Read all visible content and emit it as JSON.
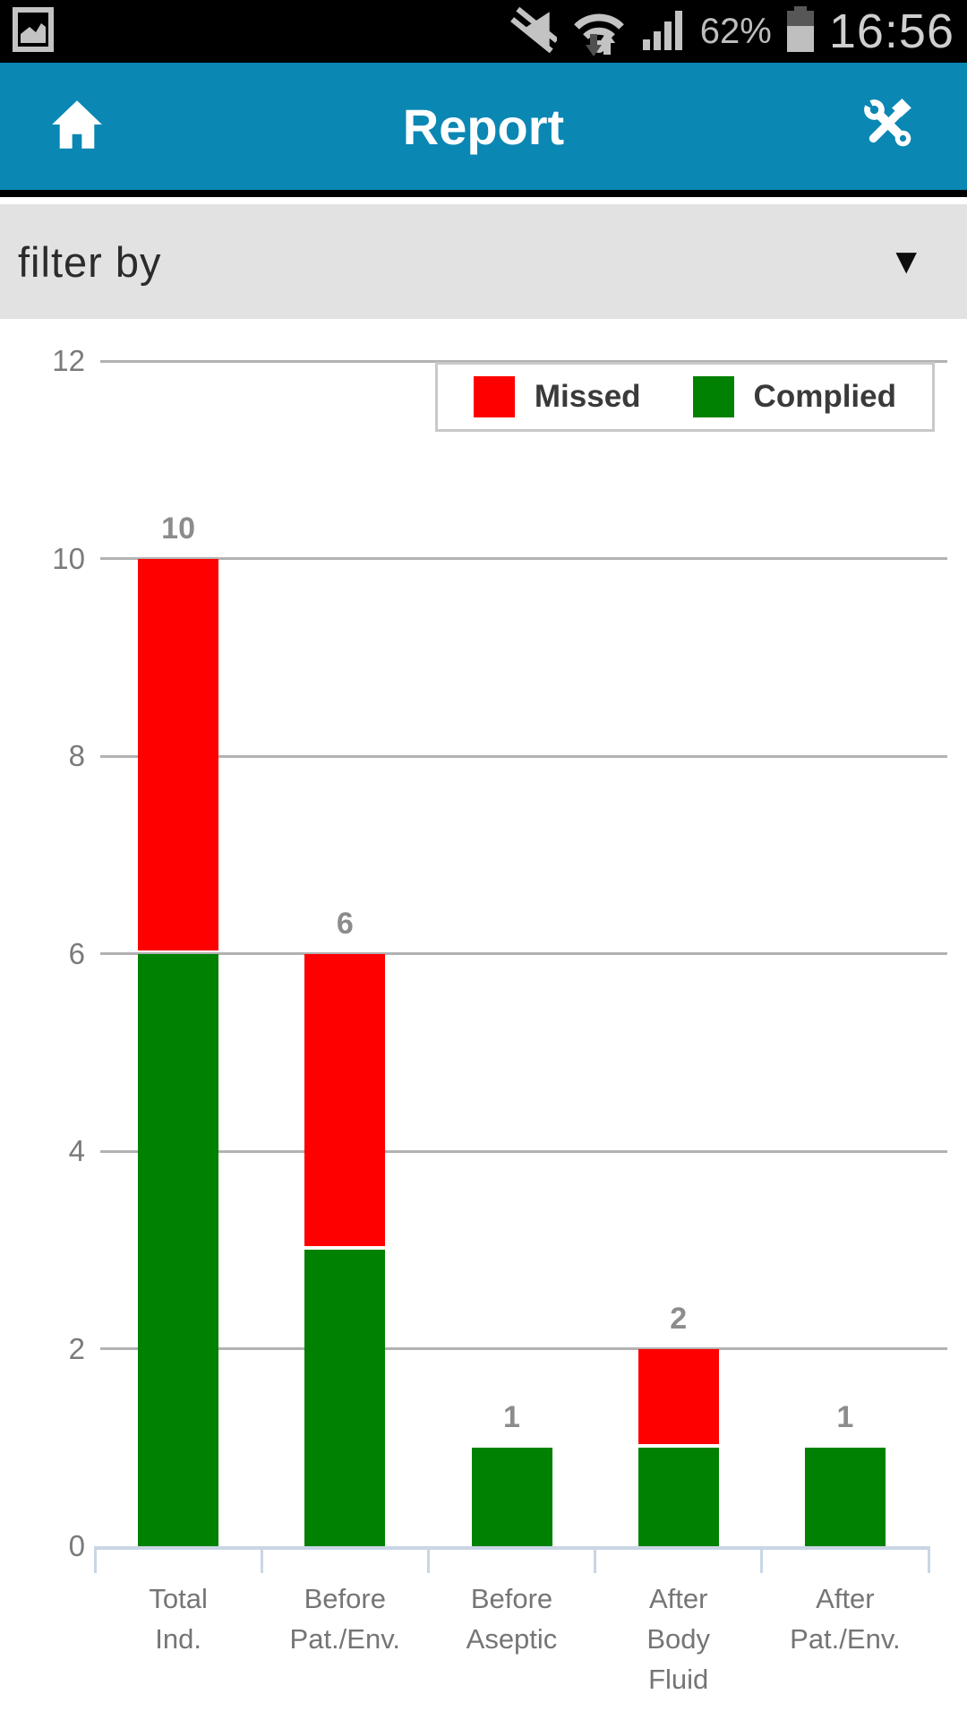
{
  "status_bar": {
    "battery_percent": "62%",
    "time": "16:56",
    "icons": [
      "image-notification-icon",
      "mute-icon",
      "wifi-updown-icon",
      "signal-icon",
      "battery-icon"
    ]
  },
  "app_bar": {
    "title": "Report",
    "left_icon": "home-icon",
    "right_icon": "tools-icon"
  },
  "filter_bar": {
    "label": "filter by",
    "caret": "▼"
  },
  "chart_data": {
    "type": "bar",
    "stacked": true,
    "title": "",
    "xlabel": "",
    "ylabel": "",
    "categories": [
      "Total\nInd.",
      "Before\nPat./Env.",
      "Before\nAseptic",
      "After\nBody\nFluid",
      "After\nPat./Env."
    ],
    "series": [
      {
        "name": "Complied",
        "color": "#018101",
        "values": [
          6,
          3,
          1,
          1,
          1
        ]
      },
      {
        "name": "Missed",
        "color": "#fe0000",
        "values": [
          4,
          3,
          0,
          1,
          0
        ]
      }
    ],
    "totals": [
      10,
      6,
      1,
      2,
      1
    ],
    "ylim": [
      0,
      12
    ],
    "yticks": [
      0,
      2,
      4,
      6,
      8,
      10,
      12
    ],
    "grid": true,
    "legend_position": "top-right",
    "legend": [
      {
        "label": "Missed",
        "color": "#fe0000"
      },
      {
        "label": "Complied",
        "color": "#018101"
      }
    ]
  },
  "colors": {
    "header": "#0a87b3",
    "filter_bar": "#e2e2e2",
    "gridline": "#b2b2b2",
    "axis": "#c9d6e5",
    "status_icon": "#c3c3c3",
    "status_icon_dark": "#575757"
  }
}
